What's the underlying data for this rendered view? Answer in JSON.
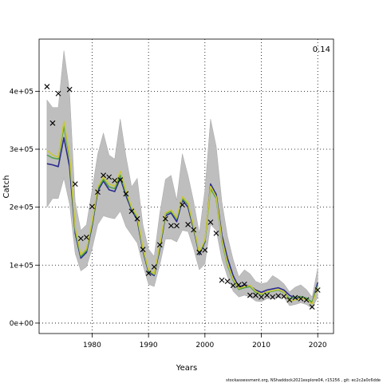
{
  "chart_data": {
    "type": "line",
    "xlabel": "Years",
    "ylabel": "Catch",
    "annotation": "0.14",
    "footer": "stockassessment.org, NShaddock2021explore04, r15256 ,  git: ec2c2a0c6dde",
    "xlim": [
      1970.6,
      2022.8
    ],
    "ylim": [
      -18000,
      490000
    ],
    "x_ticks": [
      1980,
      1990,
      2000,
      2010,
      2020
    ],
    "y_ticks": [
      0,
      100000,
      200000,
      300000,
      400000
    ],
    "y_tick_labels": [
      "0e+00",
      "1e+05",
      "2e+05",
      "3e+05",
      "4e+05"
    ],
    "grid": true,
    "colors": {
      "band": "#bebebe",
      "band_edge": "#a8a8a8",
      "line_blue": "#2b2b8e",
      "line_green": "#4fa14f",
      "line_yellow": "#c8c83a",
      "observed": "#000000"
    },
    "years": [
      1972,
      1973,
      1974,
      1975,
      1976,
      1977,
      1978,
      1979,
      1980,
      1981,
      1982,
      1983,
      1984,
      1985,
      1986,
      1987,
      1988,
      1989,
      1990,
      1991,
      1992,
      1993,
      1994,
      1995,
      1996,
      1997,
      1998,
      1999,
      2000,
      2001,
      2002,
      2003,
      2004,
      2005,
      2006,
      2007,
      2008,
      2009,
      2010,
      2011,
      2012,
      2013,
      2014,
      2015,
      2016,
      2017,
      2018,
      2019,
      2020
    ],
    "series": [
      {
        "values": [
          275000,
          273000,
          270000,
          320000,
          270000,
          155000,
          112000,
          122000,
          168000,
          228000,
          245000,
          230000,
          227000,
          250000,
          220000,
          195000,
          178000,
          125000,
          88000,
          82000,
          128000,
          185000,
          190000,
          175000,
          212000,
          200000,
          162000,
          118000,
          140000,
          240000,
          222000,
          152000,
          112000,
          82000,
          62000,
          66000,
          64000,
          57000,
          53000,
          57000,
          59000,
          61000,
          57000,
          48000,
          43000,
          43000,
          42000,
          35000,
          70000
        ]
      },
      {
        "values": [
          290000,
          285000,
          283000,
          340000,
          285000,
          160000,
          115000,
          125000,
          172000,
          232000,
          248000,
          235000,
          232000,
          255000,
          225000,
          198000,
          182000,
          128000,
          90000,
          84000,
          132000,
          188000,
          193000,
          180000,
          215000,
          205000,
          165000,
          120000,
          142000,
          232000,
          215000,
          142000,
          100000,
          74000,
          58000,
          61000,
          63000,
          53000,
          49000,
          53000,
          55000,
          57000,
          53000,
          42000,
          45000,
          46000,
          43000,
          36000,
          65000
        ]
      },
      {
        "values": [
          298000,
          290000,
          286000,
          348000,
          290000,
          165000,
          118000,
          128000,
          175000,
          235000,
          252000,
          240000,
          236000,
          262000,
          228000,
          200000,
          185000,
          130000,
          92000,
          85000,
          135000,
          190000,
          195000,
          182000,
          218000,
          207000,
          167000,
          122000,
          144000,
          236000,
          218000,
          145000,
          103000,
          76000,
          60000,
          63000,
          65000,
          55000,
          50000,
          54000,
          56000,
          58000,
          54000,
          38000,
          40000,
          43000,
          41000,
          33000,
          62000
        ]
      }
    ],
    "band_upper": [
      385000,
      372000,
      372000,
      470000,
      400000,
      210000,
      160000,
      170000,
      230000,
      292000,
      328000,
      290000,
      283000,
      352000,
      288000,
      235000,
      250000,
      170000,
      128000,
      115000,
      190000,
      248000,
      255000,
      212000,
      292000,
      255000,
      210000,
      155000,
      230000,
      352000,
      305000,
      210000,
      150000,
      110000,
      80000,
      92000,
      85000,
      72000,
      68000,
      70000,
      82000,
      76000,
      68000,
      54000,
      62000,
      66000,
      58000,
      45000,
      95000
    ],
    "band_lower": [
      200000,
      215000,
      215000,
      250000,
      205000,
      120000,
      90000,
      97000,
      128000,
      170000,
      185000,
      182000,
      180000,
      193000,
      166000,
      152000,
      138000,
      100000,
      67000,
      63000,
      100000,
      145000,
      145000,
      140000,
      160000,
      158000,
      128000,
      92000,
      102000,
      170000,
      160000,
      110000,
      80000,
      55000,
      45000,
      48000,
      45000,
      38000,
      37000,
      42000,
      42000,
      44000,
      44000,
      30000,
      32000,
      35000,
      32000,
      25000,
      45000
    ],
    "observed": [
      [
        1972,
        408000
      ],
      [
        1973,
        345000
      ],
      [
        1974,
        396000
      ],
      [
        1976,
        403000
      ],
      [
        1977,
        240000
      ],
      [
        1978,
        146000
      ],
      [
        1979,
        148000
      ],
      [
        1980,
        201000
      ],
      [
        1981,
        226000
      ],
      [
        1982,
        255000
      ],
      [
        1983,
        252000
      ],
      [
        1984,
        246000
      ],
      [
        1985,
        247000
      ],
      [
        1986,
        223000
      ],
      [
        1987,
        193000
      ],
      [
        1988,
        180000
      ],
      [
        1989,
        127000
      ],
      [
        1990,
        86000
      ],
      [
        1991,
        97000
      ],
      [
        1992,
        135000
      ],
      [
        1993,
        180000
      ],
      [
        1994,
        168000
      ],
      [
        1995,
        168000
      ],
      [
        1996,
        204000
      ],
      [
        1997,
        170000
      ],
      [
        1998,
        161000
      ],
      [
        1999,
        122000
      ],
      [
        2000,
        126000
      ],
      [
        2001,
        174000
      ],
      [
        2002,
        155000
      ],
      [
        2003,
        74000
      ],
      [
        2004,
        72000
      ],
      [
        2005,
        65000
      ],
      [
        2006,
        66000
      ],
      [
        2007,
        67000
      ],
      [
        2008,
        48000
      ],
      [
        2009,
        48000
      ],
      [
        2010,
        45000
      ],
      [
        2011,
        48000
      ],
      [
        2012,
        45000
      ],
      [
        2013,
        47000
      ],
      [
        2014,
        46000
      ],
      [
        2015,
        40000
      ],
      [
        2016,
        44000
      ],
      [
        2017,
        42000
      ],
      [
        2018,
        40000
      ],
      [
        2019,
        28000
      ],
      [
        2020,
        57000
      ]
    ]
  }
}
